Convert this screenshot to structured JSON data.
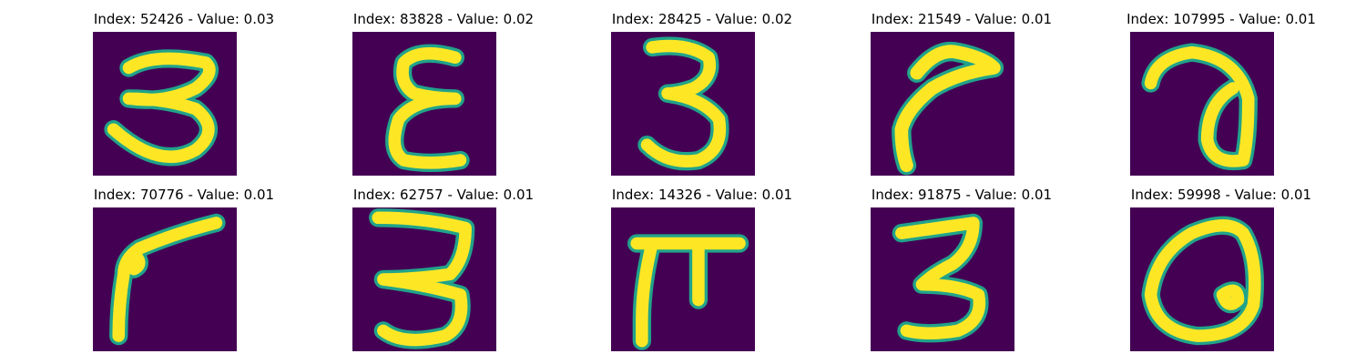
{
  "colors": {
    "background": "#440154",
    "stroke": "#fde725",
    "edge": "#21a38a"
  },
  "panels": [
    {
      "title": "Index: 52426 - Value: 0.03",
      "glyph": "3"
    },
    {
      "title": "Index: 83828 - Value: 0.02",
      "glyph": "epsilon"
    },
    {
      "title": "Index: 28425 - Value: 0.02",
      "glyph": "3"
    },
    {
      "title": "Index: 21549 - Value: 0.01",
      "glyph": "hook"
    },
    {
      "title": "Index: 107995 - Value: 0.01",
      "glyph": "a"
    },
    {
      "title": "Index: 70776 - Value: 0.01",
      "glyph": "hook"
    },
    {
      "title": "Index: 62757 - Value: 0.01",
      "glyph": "3"
    },
    {
      "title": "Index: 14326 - Value: 0.01",
      "glyph": "pi"
    },
    {
      "title": "Index: 91875 - Value: 0.01",
      "glyph": "3"
    },
    {
      "title": "Index: 59998 - Value: 0.01",
      "glyph": "a"
    }
  ]
}
